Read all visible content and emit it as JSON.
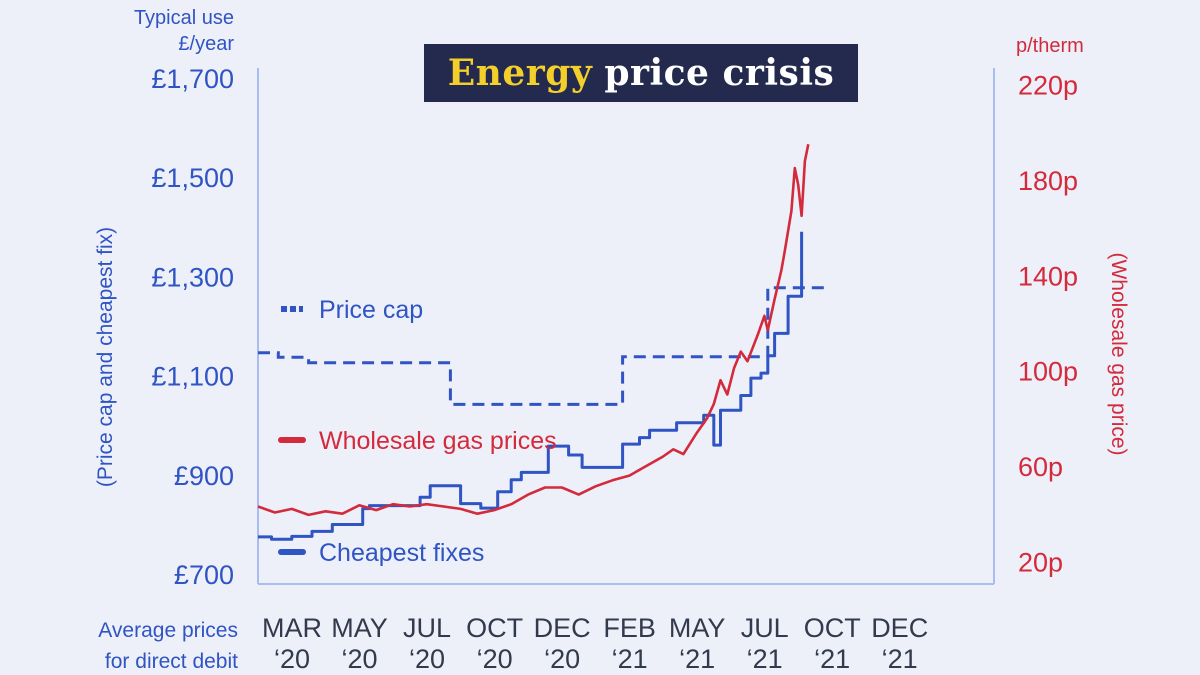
{
  "chart_data": {
    "type": "line",
    "title_accent": "Energy",
    "title_rest": "price crisis",
    "left_axis": {
      "unit_line1": "Typical use",
      "unit_line2": "£/year",
      "label": "(Price cap and cheapest fix)",
      "ticks": [
        "£1,700",
        "£1,500",
        "£1,300",
        "£1,100",
        "£900",
        "£700"
      ],
      "tick_values": [
        1700,
        1500,
        1300,
        1100,
        900,
        700
      ],
      "range": [
        680,
        1720
      ]
    },
    "right_axis": {
      "unit": "p/therm",
      "label": "(Wholesale gas price)",
      "ticks": [
        "220p",
        "180p",
        "140p",
        "100p",
        "60p",
        "20p"
      ],
      "tick_values": [
        220,
        180,
        140,
        100,
        60,
        20
      ],
      "range": [
        10.5,
        227
      ]
    },
    "x_axis": {
      "note_line1": "Average prices",
      "note_line2": "for direct debit",
      "months": [
        "MAR",
        "MAY",
        "JUL",
        "OCT",
        "DEC",
        "FEB",
        "MAY",
        "JUL",
        "OCT",
        "DEC"
      ],
      "years": [
        "‘20",
        "‘20",
        "‘20",
        "‘20",
        "‘20",
        "‘21",
        "‘21",
        "‘21",
        "‘21",
        "‘21"
      ],
      "range": [
        0,
        21.8
      ]
    },
    "legend": [
      {
        "label": "Price cap",
        "color": "#2f54c4",
        "style": "dashed"
      },
      {
        "label": "Wholesale gas prices",
        "color": "#d32a3c",
        "style": "solid"
      },
      {
        "label": "Cheapest fixes",
        "color": "#2f54c4",
        "style": "solid"
      }
    ],
    "series": [
      {
        "name": "Price cap",
        "axis": "left",
        "color": "#2f54c4",
        "style": "dashed",
        "points": [
          [
            0,
            1146
          ],
          [
            0.6,
            1146
          ],
          [
            0.6,
            1137
          ],
          [
            1.5,
            1137
          ],
          [
            1.5,
            1126
          ],
          [
            5.7,
            1126
          ],
          [
            5.7,
            1042
          ],
          [
            10.8,
            1042
          ],
          [
            10.8,
            1138
          ],
          [
            15.1,
            1138
          ],
          [
            15.1,
            1277
          ],
          [
            16.8,
            1277
          ]
        ]
      },
      {
        "name": "Cheapest fixes",
        "axis": "left",
        "color": "#2f54c4",
        "style": "solid",
        "points": [
          [
            0,
            775
          ],
          [
            0.4,
            775
          ],
          [
            0.4,
            770
          ],
          [
            1.0,
            770
          ],
          [
            1.0,
            776
          ],
          [
            1.6,
            776
          ],
          [
            1.6,
            786
          ],
          [
            2.2,
            786
          ],
          [
            2.2,
            800
          ],
          [
            3.1,
            800
          ],
          [
            3.1,
            832
          ],
          [
            3.3,
            832
          ],
          [
            3.3,
            838
          ],
          [
            4.8,
            838
          ],
          [
            4.8,
            855
          ],
          [
            5.1,
            855
          ],
          [
            5.1,
            878
          ],
          [
            6.0,
            878
          ],
          [
            6.0,
            842
          ],
          [
            6.6,
            842
          ],
          [
            6.6,
            833
          ],
          [
            7.1,
            833
          ],
          [
            7.1,
            866
          ],
          [
            7.5,
            866
          ],
          [
            7.5,
            890
          ],
          [
            7.8,
            890
          ],
          [
            7.8,
            905
          ],
          [
            8.6,
            905
          ],
          [
            8.6,
            958
          ],
          [
            9.2,
            958
          ],
          [
            9.2,
            940
          ],
          [
            9.6,
            940
          ],
          [
            9.6,
            915
          ],
          [
            10.8,
            915
          ],
          [
            10.8,
            962
          ],
          [
            11.3,
            962
          ],
          [
            11.3,
            975
          ],
          [
            11.6,
            975
          ],
          [
            11.6,
            990
          ],
          [
            12.4,
            990
          ],
          [
            12.4,
            1005
          ],
          [
            13.2,
            1005
          ],
          [
            13.2,
            1020
          ],
          [
            13.5,
            1020
          ],
          [
            13.5,
            960
          ],
          [
            13.7,
            960
          ],
          [
            13.7,
            1030
          ],
          [
            14.3,
            1030
          ],
          [
            14.3,
            1060
          ],
          [
            14.6,
            1060
          ],
          [
            14.6,
            1095
          ],
          [
            14.9,
            1095
          ],
          [
            14.9,
            1105
          ],
          [
            15.1,
            1105
          ],
          [
            15.1,
            1140
          ],
          [
            15.3,
            1140
          ],
          [
            15.3,
            1185
          ],
          [
            15.7,
            1185
          ],
          [
            15.7,
            1260
          ],
          [
            16.1,
            1260
          ],
          [
            16.1,
            1390
          ]
        ]
      },
      {
        "name": "Wholesale gas prices",
        "axis": "right",
        "color": "#d32a3c",
        "style": "solid",
        "points": [
          [
            0,
            43
          ],
          [
            0.5,
            40.5
          ],
          [
            1.0,
            42
          ],
          [
            1.5,
            39.5
          ],
          [
            2.0,
            41
          ],
          [
            2.5,
            40
          ],
          [
            3.0,
            43.5
          ],
          [
            3.5,
            41.5
          ],
          [
            4.0,
            44
          ],
          [
            4.5,
            43
          ],
          [
            5.0,
            44
          ],
          [
            5.5,
            43
          ],
          [
            6.0,
            42
          ],
          [
            6.5,
            40
          ],
          [
            7.0,
            41.5
          ],
          [
            7.5,
            44
          ],
          [
            8.0,
            48
          ],
          [
            8.5,
            51
          ],
          [
            9.0,
            51
          ],
          [
            9.5,
            48
          ],
          [
            10.0,
            51.5
          ],
          [
            10.5,
            54
          ],
          [
            11.0,
            56
          ],
          [
            11.5,
            60
          ],
          [
            12.0,
            64
          ],
          [
            12.3,
            67
          ],
          [
            12.6,
            65
          ],
          [
            13.0,
            74
          ],
          [
            13.3,
            80
          ],
          [
            13.5,
            86
          ],
          [
            13.7,
            96
          ],
          [
            13.9,
            90
          ],
          [
            14.1,
            101
          ],
          [
            14.3,
            108
          ],
          [
            14.5,
            104
          ],
          [
            14.8,
            115
          ],
          [
            15.0,
            123
          ],
          [
            15.1,
            117
          ],
          [
            15.3,
            130
          ],
          [
            15.5,
            142
          ],
          [
            15.6,
            150
          ],
          [
            15.8,
            167
          ],
          [
            15.9,
            185
          ],
          [
            16.0,
            178
          ],
          [
            16.1,
            165
          ],
          [
            16.2,
            188
          ],
          [
            16.3,
            195
          ]
        ]
      }
    ]
  }
}
